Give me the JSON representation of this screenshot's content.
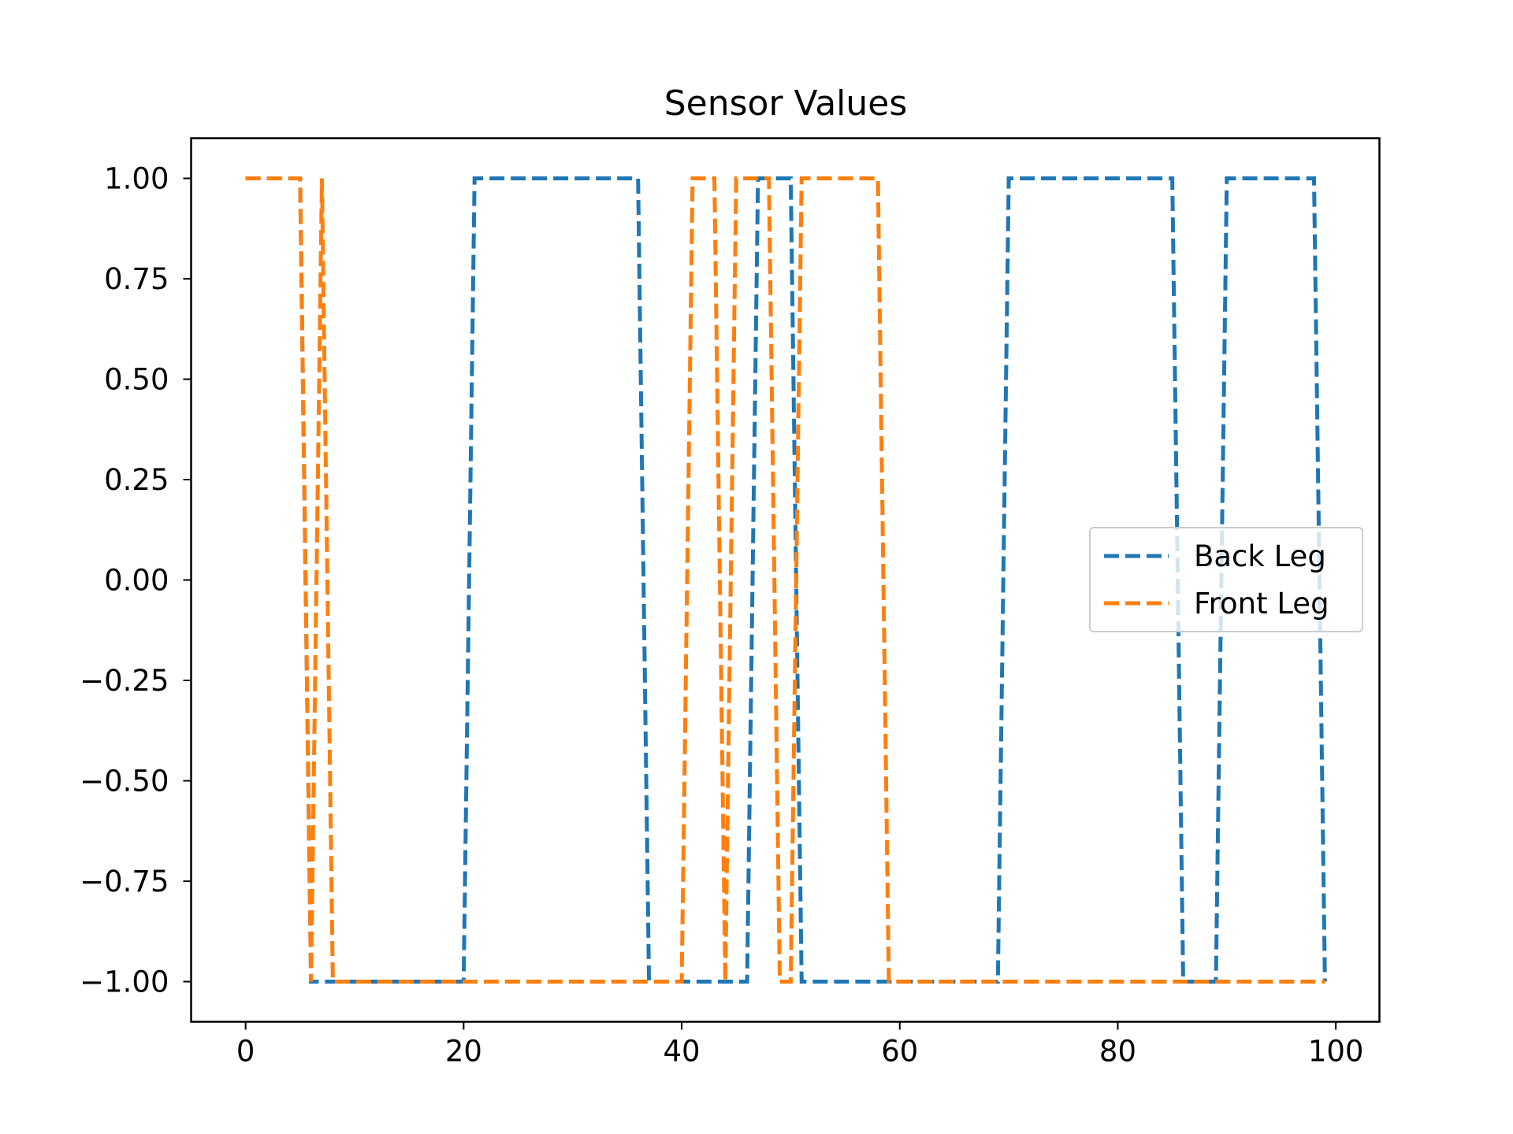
{
  "chart_data": {
    "type": "line",
    "title": "Sensor Values",
    "xlabel": "",
    "ylabel": "",
    "xlim": [
      -5,
      104
    ],
    "ylim": [
      -1.1,
      1.1
    ],
    "x_ticks": [
      0,
      20,
      40,
      60,
      80,
      100
    ],
    "x_tick_labels": [
      "0",
      "20",
      "40",
      "60",
      "80",
      "100"
    ],
    "y_ticks": [
      1.0,
      0.75,
      0.5,
      0.25,
      0.0,
      -0.25,
      -0.5,
      -0.75,
      -1.0
    ],
    "y_tick_labels": [
      "1.00",
      "0.75",
      "0.50",
      "0.25",
      "0.00",
      "−0.25",
      "−0.50",
      "−0.75",
      "−1.00"
    ],
    "grid": false,
    "legend_position": "center-right",
    "series": [
      {
        "name": "Back Leg",
        "color": "#1f77b4",
        "style": "dashed",
        "x": [
          0,
          1,
          2,
          3,
          4,
          5,
          6,
          7,
          8,
          9,
          10,
          11,
          12,
          13,
          14,
          15,
          16,
          17,
          18,
          19,
          20,
          21,
          22,
          23,
          24,
          25,
          26,
          27,
          28,
          29,
          30,
          31,
          32,
          33,
          34,
          35,
          36,
          37,
          38,
          39,
          40,
          41,
          42,
          43,
          44,
          45,
          46,
          47,
          48,
          49,
          50,
          51,
          52,
          53,
          54,
          55,
          56,
          57,
          58,
          59,
          60,
          61,
          62,
          63,
          64,
          65,
          66,
          67,
          68,
          69,
          70,
          71,
          72,
          73,
          74,
          75,
          76,
          77,
          78,
          79,
          80,
          81,
          82,
          83,
          84,
          85,
          86,
          87,
          88,
          89,
          90,
          91,
          92,
          93,
          94,
          95,
          96,
          97,
          98,
          99
        ],
        "values": [
          1,
          1,
          1,
          1,
          1,
          1,
          -1,
          -1,
          -1,
          -1,
          -1,
          -1,
          -1,
          -1,
          -1,
          -1,
          -1,
          -1,
          -1,
          -1,
          -1,
          1,
          1,
          1,
          1,
          1,
          1,
          1,
          1,
          1,
          1,
          1,
          1,
          1,
          1,
          1,
          1,
          -1,
          -1,
          -1,
          -1,
          -1,
          -1,
          -1,
          -1,
          -1,
          -1,
          1,
          1,
          1,
          1,
          -1,
          -1,
          -1,
          -1,
          -1,
          -1,
          -1,
          -1,
          -1,
          -1,
          -1,
          -1,
          -1,
          -1,
          -1,
          -1,
          -1,
          -1,
          -1,
          1,
          1,
          1,
          1,
          1,
          1,
          1,
          1,
          1,
          1,
          1,
          1,
          1,
          1,
          1,
          1,
          -1,
          -1,
          -1,
          -1,
          1,
          1,
          1,
          1,
          1,
          1,
          1,
          1,
          1,
          -1
        ]
      },
      {
        "name": "Front Leg",
        "color": "#ff7f0e",
        "style": "dashed",
        "x": [
          0,
          1,
          2,
          3,
          4,
          5,
          6,
          7,
          8,
          9,
          10,
          11,
          12,
          13,
          14,
          15,
          16,
          17,
          18,
          19,
          20,
          21,
          22,
          23,
          24,
          25,
          26,
          27,
          28,
          29,
          30,
          31,
          32,
          33,
          34,
          35,
          36,
          37,
          38,
          39,
          40,
          41,
          42,
          43,
          44,
          45,
          46,
          47,
          48,
          49,
          50,
          51,
          52,
          53,
          54,
          55,
          56,
          57,
          58,
          59,
          60,
          61,
          62,
          63,
          64,
          65,
          66,
          67,
          68,
          69,
          70,
          71,
          72,
          73,
          74,
          75,
          76,
          77,
          78,
          79,
          80,
          81,
          82,
          83,
          84,
          85,
          86,
          87,
          88,
          89,
          90,
          91,
          92,
          93,
          94,
          95,
          96,
          97,
          98,
          99
        ],
        "values": [
          1,
          1,
          1,
          1,
          1,
          1,
          -1,
          1,
          -1,
          -1,
          -1,
          -1,
          -1,
          -1,
          -1,
          -1,
          -1,
          -1,
          -1,
          -1,
          -1,
          -1,
          -1,
          -1,
          -1,
          -1,
          -1,
          -1,
          -1,
          -1,
          -1,
          -1,
          -1,
          -1,
          -1,
          -1,
          -1,
          -1,
          -1,
          -1,
          -1,
          1,
          1,
          1,
          -1,
          1,
          1,
          1,
          1,
          -1,
          -1,
          1,
          1,
          1,
          1,
          1,
          1,
          1,
          1,
          -1,
          -1,
          -1,
          -1,
          -1,
          -1,
          -1,
          -1,
          -1,
          -1,
          -1,
          -1,
          -1,
          -1,
          -1,
          -1,
          -1,
          -1,
          -1,
          -1,
          -1,
          -1,
          -1,
          -1,
          -1,
          -1,
          -1,
          -1,
          -1,
          -1,
          -1,
          -1,
          -1,
          -1,
          -1,
          -1,
          -1,
          -1,
          -1,
          -1,
          -1
        ]
      }
    ]
  }
}
